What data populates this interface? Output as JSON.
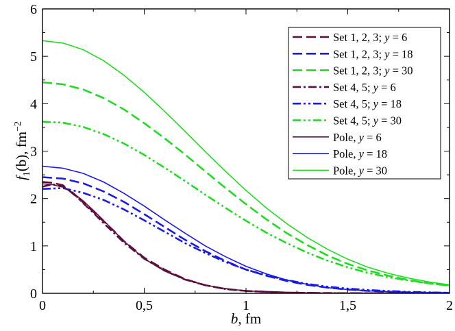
{
  "chart_data": {
    "type": "line",
    "xlabel": {
      "var": "b",
      "unit": ", fm"
    },
    "ylabel": {
      "var": "f",
      "sub": "1",
      "arg": "(b)",
      "unit": ", fm",
      "sup": "−2"
    },
    "xlim": [
      0,
      2
    ],
    "ylim": [
      0,
      6
    ],
    "xticks": [
      {
        "value": 0,
        "label": "0"
      },
      {
        "value": 0.5,
        "label": "0,5"
      },
      {
        "value": 1,
        "label": "1"
      },
      {
        "value": 1.5,
        "label": "1,5"
      },
      {
        "value": 2,
        "label": "2"
      }
    ],
    "yticks": [
      {
        "value": 0,
        "label": "0"
      },
      {
        "value": 1,
        "label": "1"
      },
      {
        "value": 2,
        "label": "2"
      },
      {
        "value": 3,
        "label": "3"
      },
      {
        "value": 4,
        "label": "4"
      },
      {
        "value": 5,
        "label": "5"
      },
      {
        "value": 6,
        "label": "6"
      }
    ],
    "grid": false,
    "legend_position": "top-right",
    "series": [
      {
        "name": "Set 1, 2, 3; y = 6",
        "label_prefix": "Set 1, 2, 3; ",
        "label_var": "y",
        "label_suffix": " = 6",
        "color": "#5c0f3f",
        "dash": "dashed",
        "x": [
          0,
          0.05,
          0.1,
          0.15,
          0.2,
          0.25,
          0.3,
          0.35,
          0.4,
          0.5,
          0.6,
          0.7,
          0.8,
          0.9,
          1.0,
          1.2,
          1.4,
          1.6,
          1.8,
          2.0
        ],
        "y": [
          2.35,
          2.33,
          2.28,
          2.1,
          1.92,
          1.72,
          1.52,
          1.32,
          1.1,
          0.75,
          0.5,
          0.3,
          0.17,
          0.09,
          0.05,
          0.015,
          0.005,
          0.002,
          0.001,
          0
        ]
      },
      {
        "name": "Set 1, 2, 3; y = 18",
        "label_prefix": "Set 1, 2, 3; ",
        "label_var": "y",
        "label_suffix": " = 18",
        "color": "#1a1ae6",
        "dash": "dashed",
        "x": [
          0,
          0.1,
          0.2,
          0.3,
          0.4,
          0.5,
          0.6,
          0.7,
          0.8,
          0.9,
          1.0,
          1.1,
          1.2,
          1.3,
          1.4,
          1.5,
          1.6,
          1.8,
          2.0
        ],
        "y": [
          2.45,
          2.42,
          2.32,
          2.15,
          1.93,
          1.67,
          1.4,
          1.13,
          0.89,
          0.68,
          0.5,
          0.37,
          0.26,
          0.18,
          0.12,
          0.08,
          0.05,
          0.02,
          0.01
        ]
      },
      {
        "name": "Set 1, 2, 3; y = 30",
        "label_prefix": "Set 1, 2, 3; ",
        "label_var": "y",
        "label_suffix": " = 30",
        "color": "#1fdc1f",
        "dash": "dashed",
        "x": [
          0,
          0.1,
          0.2,
          0.3,
          0.4,
          0.5,
          0.6,
          0.7,
          0.8,
          0.9,
          1.0,
          1.1,
          1.2,
          1.3,
          1.4,
          1.5,
          1.6,
          1.7,
          1.8,
          1.9,
          2.0
        ],
        "y": [
          4.45,
          4.41,
          4.3,
          4.12,
          3.88,
          3.59,
          3.27,
          2.93,
          2.57,
          2.22,
          1.88,
          1.56,
          1.27,
          1.02,
          0.8,
          0.62,
          0.48,
          0.37,
          0.28,
          0.21,
          0.16
        ]
      },
      {
        "name": "Set 4, 5; y = 6",
        "label_prefix": "Set 4, 5; ",
        "label_var": "y",
        "label_suffix": " = 6",
        "color": "#5c0f3f",
        "dash": "dashdot",
        "x": [
          0,
          0.05,
          0.1,
          0.15,
          0.2,
          0.25,
          0.3,
          0.35,
          0.4,
          0.5,
          0.6,
          0.7,
          0.8,
          0.9,
          1.0,
          1.2,
          1.4,
          1.6,
          1.8,
          2.0
        ],
        "y": [
          2.25,
          2.3,
          2.26,
          2.12,
          1.9,
          1.7,
          1.48,
          1.28,
          1.07,
          0.73,
          0.48,
          0.29,
          0.17,
          0.09,
          0.05,
          0.015,
          0.005,
          0.002,
          0.001,
          0
        ]
      },
      {
        "name": "Set 4, 5; y = 18",
        "label_prefix": "Set 4, 5; ",
        "label_var": "y",
        "label_suffix": " = 18",
        "color": "#1a1ae6",
        "dash": "dashdotdot",
        "x": [
          0,
          0.1,
          0.2,
          0.3,
          0.4,
          0.5,
          0.6,
          0.7,
          0.8,
          0.9,
          1.0,
          1.1,
          1.2,
          1.3,
          1.4,
          1.5,
          1.6,
          1.8,
          2.0
        ],
        "y": [
          2.2,
          2.22,
          2.12,
          1.97,
          1.77,
          1.54,
          1.3,
          1.06,
          0.85,
          0.66,
          0.5,
          0.38,
          0.28,
          0.2,
          0.14,
          0.1,
          0.07,
          0.03,
          0.01
        ]
      },
      {
        "name": "Set 4, 5; y = 30",
        "label_prefix": "Set 4, 5; ",
        "label_var": "y",
        "label_suffix": " = 30",
        "color": "#1fdc1f",
        "dash": "dashdotdot",
        "x": [
          0,
          0.1,
          0.2,
          0.3,
          0.4,
          0.5,
          0.6,
          0.7,
          0.8,
          0.9,
          1.0,
          1.1,
          1.2,
          1.3,
          1.4,
          1.5,
          1.6,
          1.7,
          1.8,
          1.9,
          2.0
        ],
        "y": [
          3.62,
          3.6,
          3.51,
          3.36,
          3.16,
          2.92,
          2.65,
          2.37,
          2.08,
          1.8,
          1.53,
          1.28,
          1.06,
          0.86,
          0.69,
          0.55,
          0.43,
          0.34,
          0.27,
          0.21,
          0.17
        ]
      },
      {
        "name": "Pole, y = 6",
        "label_prefix": "Pole, ",
        "label_var": "y",
        "label_suffix": " = 6",
        "color": "#5c0f3f",
        "dash": "solid",
        "x": [
          0,
          0.05,
          0.1,
          0.15,
          0.2,
          0.25,
          0.3,
          0.35,
          0.4,
          0.5,
          0.6,
          0.7,
          0.8,
          0.9,
          1.0,
          1.2,
          1.4,
          1.6,
          1.8,
          2.0
        ],
        "y": [
          2.31,
          2.29,
          2.24,
          2.12,
          1.95,
          1.75,
          1.54,
          1.32,
          1.1,
          0.73,
          0.47,
          0.29,
          0.17,
          0.1,
          0.05,
          0.015,
          0.005,
          0.002,
          0.001,
          0
        ]
      },
      {
        "name": "Pole, y = 18",
        "label_prefix": "Pole, ",
        "label_var": "y",
        "label_suffix": " = 18",
        "color": "#1a1ae6",
        "dash": "solid",
        "x": [
          0,
          0.1,
          0.2,
          0.3,
          0.4,
          0.5,
          0.6,
          0.7,
          0.8,
          0.9,
          1.0,
          1.1,
          1.2,
          1.3,
          1.4,
          1.5,
          1.6,
          1.8,
          2.0
        ],
        "y": [
          2.68,
          2.64,
          2.53,
          2.35,
          2.11,
          1.84,
          1.55,
          1.27,
          1.0,
          0.77,
          0.57,
          0.41,
          0.28,
          0.19,
          0.12,
          0.08,
          0.05,
          0.02,
          0.01
        ]
      },
      {
        "name": "Pole, y = 30",
        "label_prefix": "Pole, ",
        "label_var": "y",
        "label_suffix": " = 30",
        "color": "#1fdc1f",
        "dash": "solid",
        "x": [
          0,
          0.1,
          0.2,
          0.3,
          0.4,
          0.5,
          0.6,
          0.7,
          0.8,
          0.9,
          1.0,
          1.1,
          1.2,
          1.3,
          1.4,
          1.5,
          1.6,
          1.7,
          1.8,
          1.9,
          2.0
        ],
        "y": [
          5.33,
          5.28,
          5.14,
          4.91,
          4.6,
          4.24,
          3.84,
          3.42,
          2.99,
          2.57,
          2.17,
          1.8,
          1.47,
          1.18,
          0.93,
          0.72,
          0.55,
          0.42,
          0.32,
          0.24,
          0.18
        ]
      }
    ]
  }
}
